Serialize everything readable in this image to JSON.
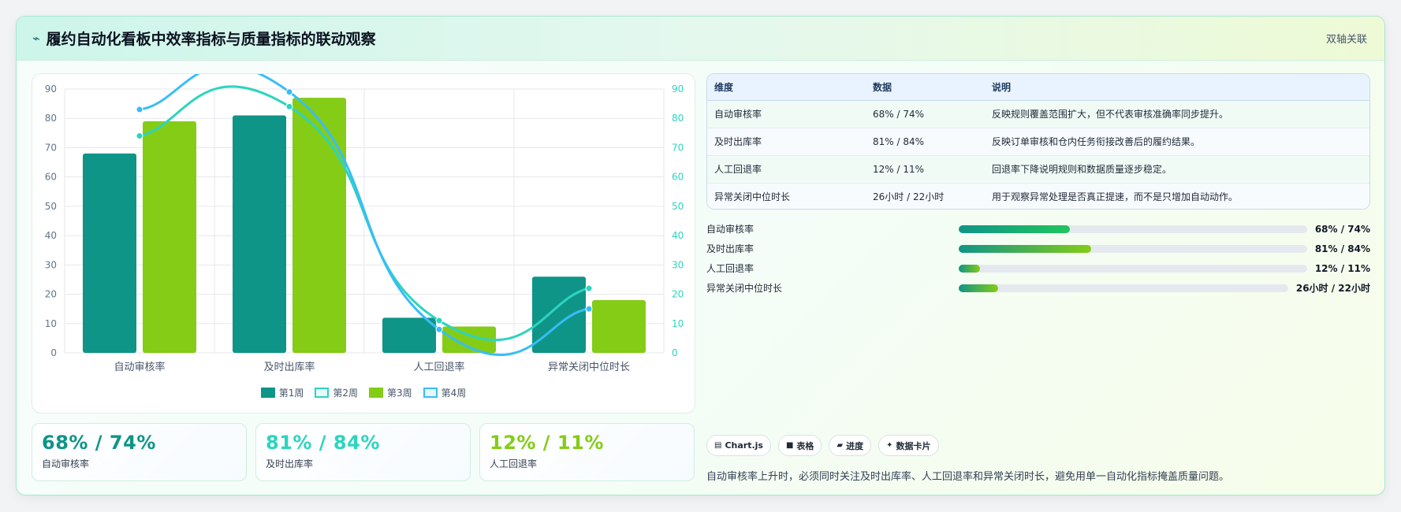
{
  "header": {
    "icon": "chart-line-icon",
    "title": "履约自动化看板中效率指标与质量指标的联动观察",
    "tag": "双轴关联"
  },
  "colors": {
    "week1": "#0f9488",
    "week2": "#2dd4bf",
    "week3": "#84cc16",
    "week4": "#38bdf8"
  },
  "chart_data": {
    "type": "bar",
    "categories": [
      "自动审核率",
      "及时出库率",
      "人工回退率",
      "异常关闭中位时长"
    ],
    "series": [
      {
        "name": "第1周",
        "type": "bar",
        "values": [
          68,
          81,
          12,
          26
        ]
      },
      {
        "name": "第2周",
        "type": "line",
        "values": [
          74,
          84,
          11,
          22
        ]
      },
      {
        "name": "第3周",
        "type": "bar",
        "values": [
          79,
          87,
          9,
          18
        ]
      },
      {
        "name": "第4周",
        "type": "line",
        "values": [
          83,
          89,
          8,
          15
        ]
      }
    ],
    "ylim": [
      0,
      90
    ],
    "yticks": [
      "0",
      "10",
      "20",
      "30",
      "40",
      "50",
      "60",
      "70",
      "80",
      "90"
    ],
    "y2ticks": [
      "0",
      "10",
      "20",
      "30",
      "40",
      "50",
      "60",
      "70",
      "80",
      "90"
    ],
    "grid": true,
    "legend": "bottom"
  },
  "table": {
    "headers": [
      "维度",
      "数据",
      "说明"
    ],
    "rows": [
      [
        "自动审核率",
        "68% / 74%",
        "反映规则覆盖范围扩大，但不代表审核准确率同步提升。"
      ],
      [
        "及时出库率",
        "81% / 84%",
        "反映订单审核和仓内任务衔接改善后的履约结果。"
      ],
      [
        "人工回退率",
        "12% / 11%",
        "回退率下降说明规则和数据质量逐步稳定。"
      ],
      [
        "异常关闭中位时长",
        "26小时 / 22小时",
        "用于观察异常处理是否真正提速，而不是只增加自动动作。"
      ]
    ]
  },
  "progress": [
    {
      "label": "自动审核率",
      "value": "68% / 74%",
      "fill": 0.32,
      "from": "#0f9488",
      "to": "#22c55e"
    },
    {
      "label": "及时出库率",
      "value": "81% / 84%",
      "fill": 0.38,
      "from": "#0f9488",
      "to": "#84cc16"
    },
    {
      "label": "人工回退率",
      "value": "12% / 11%",
      "fill": 0.06,
      "from": "#0f9488",
      "to": "#84cc16"
    },
    {
      "label": "异常关闭中位时长",
      "value": "26小时 / 22小时",
      "fill": 0.12,
      "from": "#0f9488",
      "to": "#84cc16"
    }
  ],
  "kpis": [
    {
      "value": "68% / 74%",
      "label": "自动审核率",
      "color": "#0f9488"
    },
    {
      "value": "81% / 84%",
      "label": "及时出库率",
      "color": "#2dd4bf"
    },
    {
      "value": "12% / 11%",
      "label": "人工回退率",
      "color": "#84cc16"
    }
  ],
  "tags": [
    {
      "icon": "chart-icon",
      "glyph": "▤",
      "label": "Chart.js"
    },
    {
      "icon": "table-icon",
      "glyph": "■",
      "label": "表格"
    },
    {
      "icon": "progress-icon",
      "glyph": "▰",
      "label": "进度"
    },
    {
      "icon": "sparkle-icon",
      "glyph": "✦",
      "label": "数据卡片"
    }
  ],
  "note": "自动审核率上升时，必须同时关注及时出库率、人工回退率和异常关闭时长，避免用单一自动化指标掩盖质量问题。"
}
